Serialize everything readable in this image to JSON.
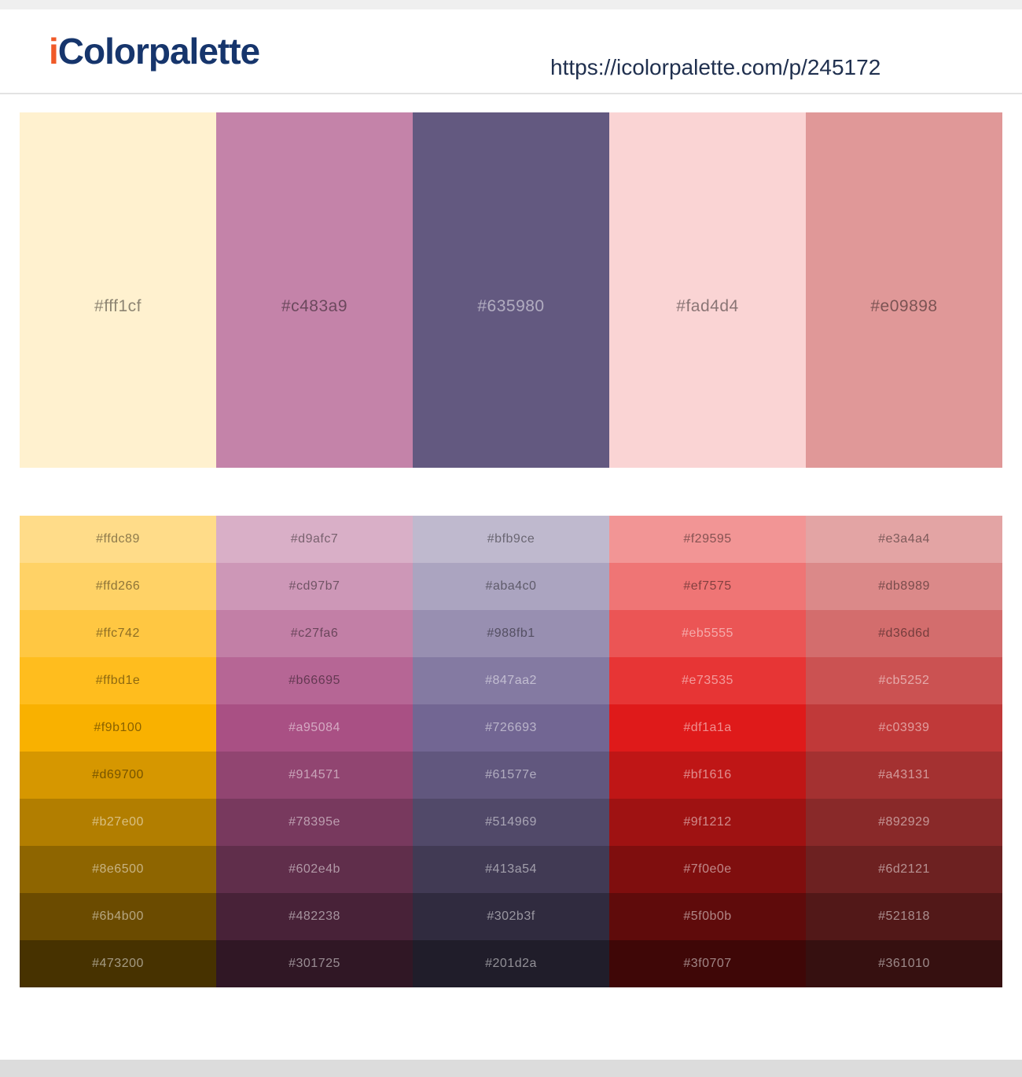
{
  "header": {
    "logo_prefix": "i",
    "logo_name": "Colorpalette",
    "url": "https://icolorpalette.com/p/245172"
  },
  "theme": {
    "top_bar": "#efefef",
    "footer_bar": "#dcdcdc",
    "divider": "#e3e3e3",
    "logo_i": "#f05a28",
    "logo_text": "#16356c",
    "url_text": "#20304f",
    "label_dark": "rgba(0,0,0,0.45)",
    "label_light": "rgba(255,255,255,0.5)"
  },
  "palette": {
    "colors": [
      {
        "hex": "#fff1cf"
      },
      {
        "hex": "#c483a9"
      },
      {
        "hex": "#635980"
      },
      {
        "hex": "#fad4d4"
      },
      {
        "hex": "#e09898"
      }
    ]
  },
  "shades": {
    "columns": [
      {
        "shades": [
          "#ffdc89",
          "#ffd266",
          "#ffc742",
          "#ffbd1e",
          "#f9b100",
          "#d69700",
          "#b27e00",
          "#8e6500",
          "#6b4b00",
          "#473200"
        ]
      },
      {
        "shades": [
          "#d9afc7",
          "#cd97b7",
          "#c27fa6",
          "#b66695",
          "#a95084",
          "#914571",
          "#78395e",
          "#602e4b",
          "#482238",
          "#301725"
        ]
      },
      {
        "shades": [
          "#bfb9ce",
          "#aba4c0",
          "#988fb1",
          "#847aa2",
          "#726693",
          "#61577e",
          "#514969",
          "#413a54",
          "#302b3f",
          "#201d2a"
        ]
      },
      {
        "shades": [
          "#f29595",
          "#ef7575",
          "#eb5555",
          "#e73535",
          "#df1a1a",
          "#bf1616",
          "#9f1212",
          "#7f0e0e",
          "#5f0b0b",
          "#3f0707"
        ]
      },
      {
        "shades": [
          "#e3a4a4",
          "#db8989",
          "#d36d6d",
          "#cb5252",
          "#c03939",
          "#a43131",
          "#892929",
          "#6d2121",
          "#521818",
          "#361010"
        ]
      }
    ]
  }
}
